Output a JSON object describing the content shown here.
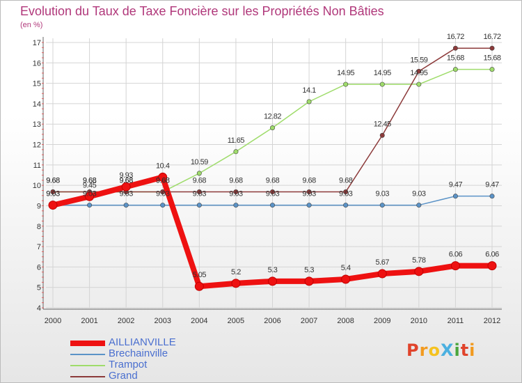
{
  "title": "Evolution du Taux de Taxe Foncière sur les Propriétés Non Bâties",
  "subtitle": "(en %)",
  "logo": {
    "text": "ProXiti",
    "colors": [
      "#e0432b",
      "#f29a1f",
      "#f5c21f",
      "#4bb0e0",
      "#4aa63c",
      "#e0432b",
      "#f29a1f"
    ]
  },
  "chart_data": {
    "type": "line",
    "title": "Evolution du Taux de Taxe Foncière sur les Propriétés Non Bâties",
    "ylabel": "(en %)",
    "xlabel": "",
    "ylim": [
      4,
      17
    ],
    "yticks": [
      4,
      5,
      6,
      7,
      8,
      9,
      10,
      11,
      12,
      13,
      14,
      15,
      16,
      17
    ],
    "categories": [
      "2000",
      "2001",
      "2002",
      "2003",
      "2004",
      "2005",
      "2006",
      "2007",
      "2008",
      "2009",
      "2010",
      "2011",
      "2012"
    ],
    "grid": true,
    "legend_position": "bottom-left",
    "series": [
      {
        "name": "Brechainville",
        "color": "#5b93c7",
        "values": [
          9.03,
          9.03,
          9.03,
          9.03,
          9.03,
          9.03,
          9.03,
          9.03,
          9.03,
          9.03,
          9.03,
          9.47,
          9.47
        ],
        "labels": [
          "9.03",
          "9.03",
          "9.03",
          "9.03",
          "9.03",
          "9.03",
          "9.03",
          "9.03",
          "9.03",
          "9.03",
          "9.03",
          "9.47",
          "9.47"
        ]
      },
      {
        "name": "Trampot",
        "color": "#9fdc6b",
        "values": [
          9.68,
          9.68,
          9.68,
          9.68,
          10.59,
          11.65,
          12.82,
          14.1,
          14.95,
          14.95,
          14.95,
          15.68,
          15.68
        ],
        "labels": [
          "9.68",
          "9.68",
          "9.68",
          "9.68",
          "10.59",
          "11.65",
          "12.82",
          "14.1",
          "14.95",
          "14.95",
          "14.95",
          "15.68",
          "15.68"
        ]
      },
      {
        "name": "Grand",
        "color": "#8c3a3a",
        "values": [
          9.68,
          9.68,
          9.68,
          9.68,
          9.68,
          9.68,
          9.68,
          9.68,
          9.68,
          12.45,
          15.59,
          16.72,
          16.72
        ],
        "labels": [
          "9.68",
          "9.68",
          "9.68",
          "9.68",
          "9.68",
          "9.68",
          "9.68",
          "9.68",
          "9.68",
          "12.45",
          "15.59",
          "16.72",
          "16.72"
        ]
      },
      {
        "name": "AILLIANVILLE",
        "color": "#ee1111",
        "values": [
          9.03,
          9.45,
          9.93,
          10.4,
          5.05,
          5.2,
          5.3,
          5.3,
          5.4,
          5.67,
          5.78,
          6.06,
          6.06
        ],
        "labels": [
          "9.03",
          "9.45",
          "9.93",
          "10.4",
          "5.05",
          "5.2",
          "5.3",
          "5.3",
          "5.4",
          "5.67",
          "5.78",
          "6.06",
          "6.06"
        ]
      }
    ]
  },
  "legend": [
    {
      "name": "AILLIANVILLE",
      "color": "#ee1111",
      "thickness": 8
    },
    {
      "name": "Brechainville",
      "color": "#5b93c7",
      "thickness": 2
    },
    {
      "name": "Trampot",
      "color": "#9fdc6b",
      "thickness": 2
    },
    {
      "name": "Grand",
      "color": "#8c3a3a",
      "thickness": 2
    }
  ]
}
